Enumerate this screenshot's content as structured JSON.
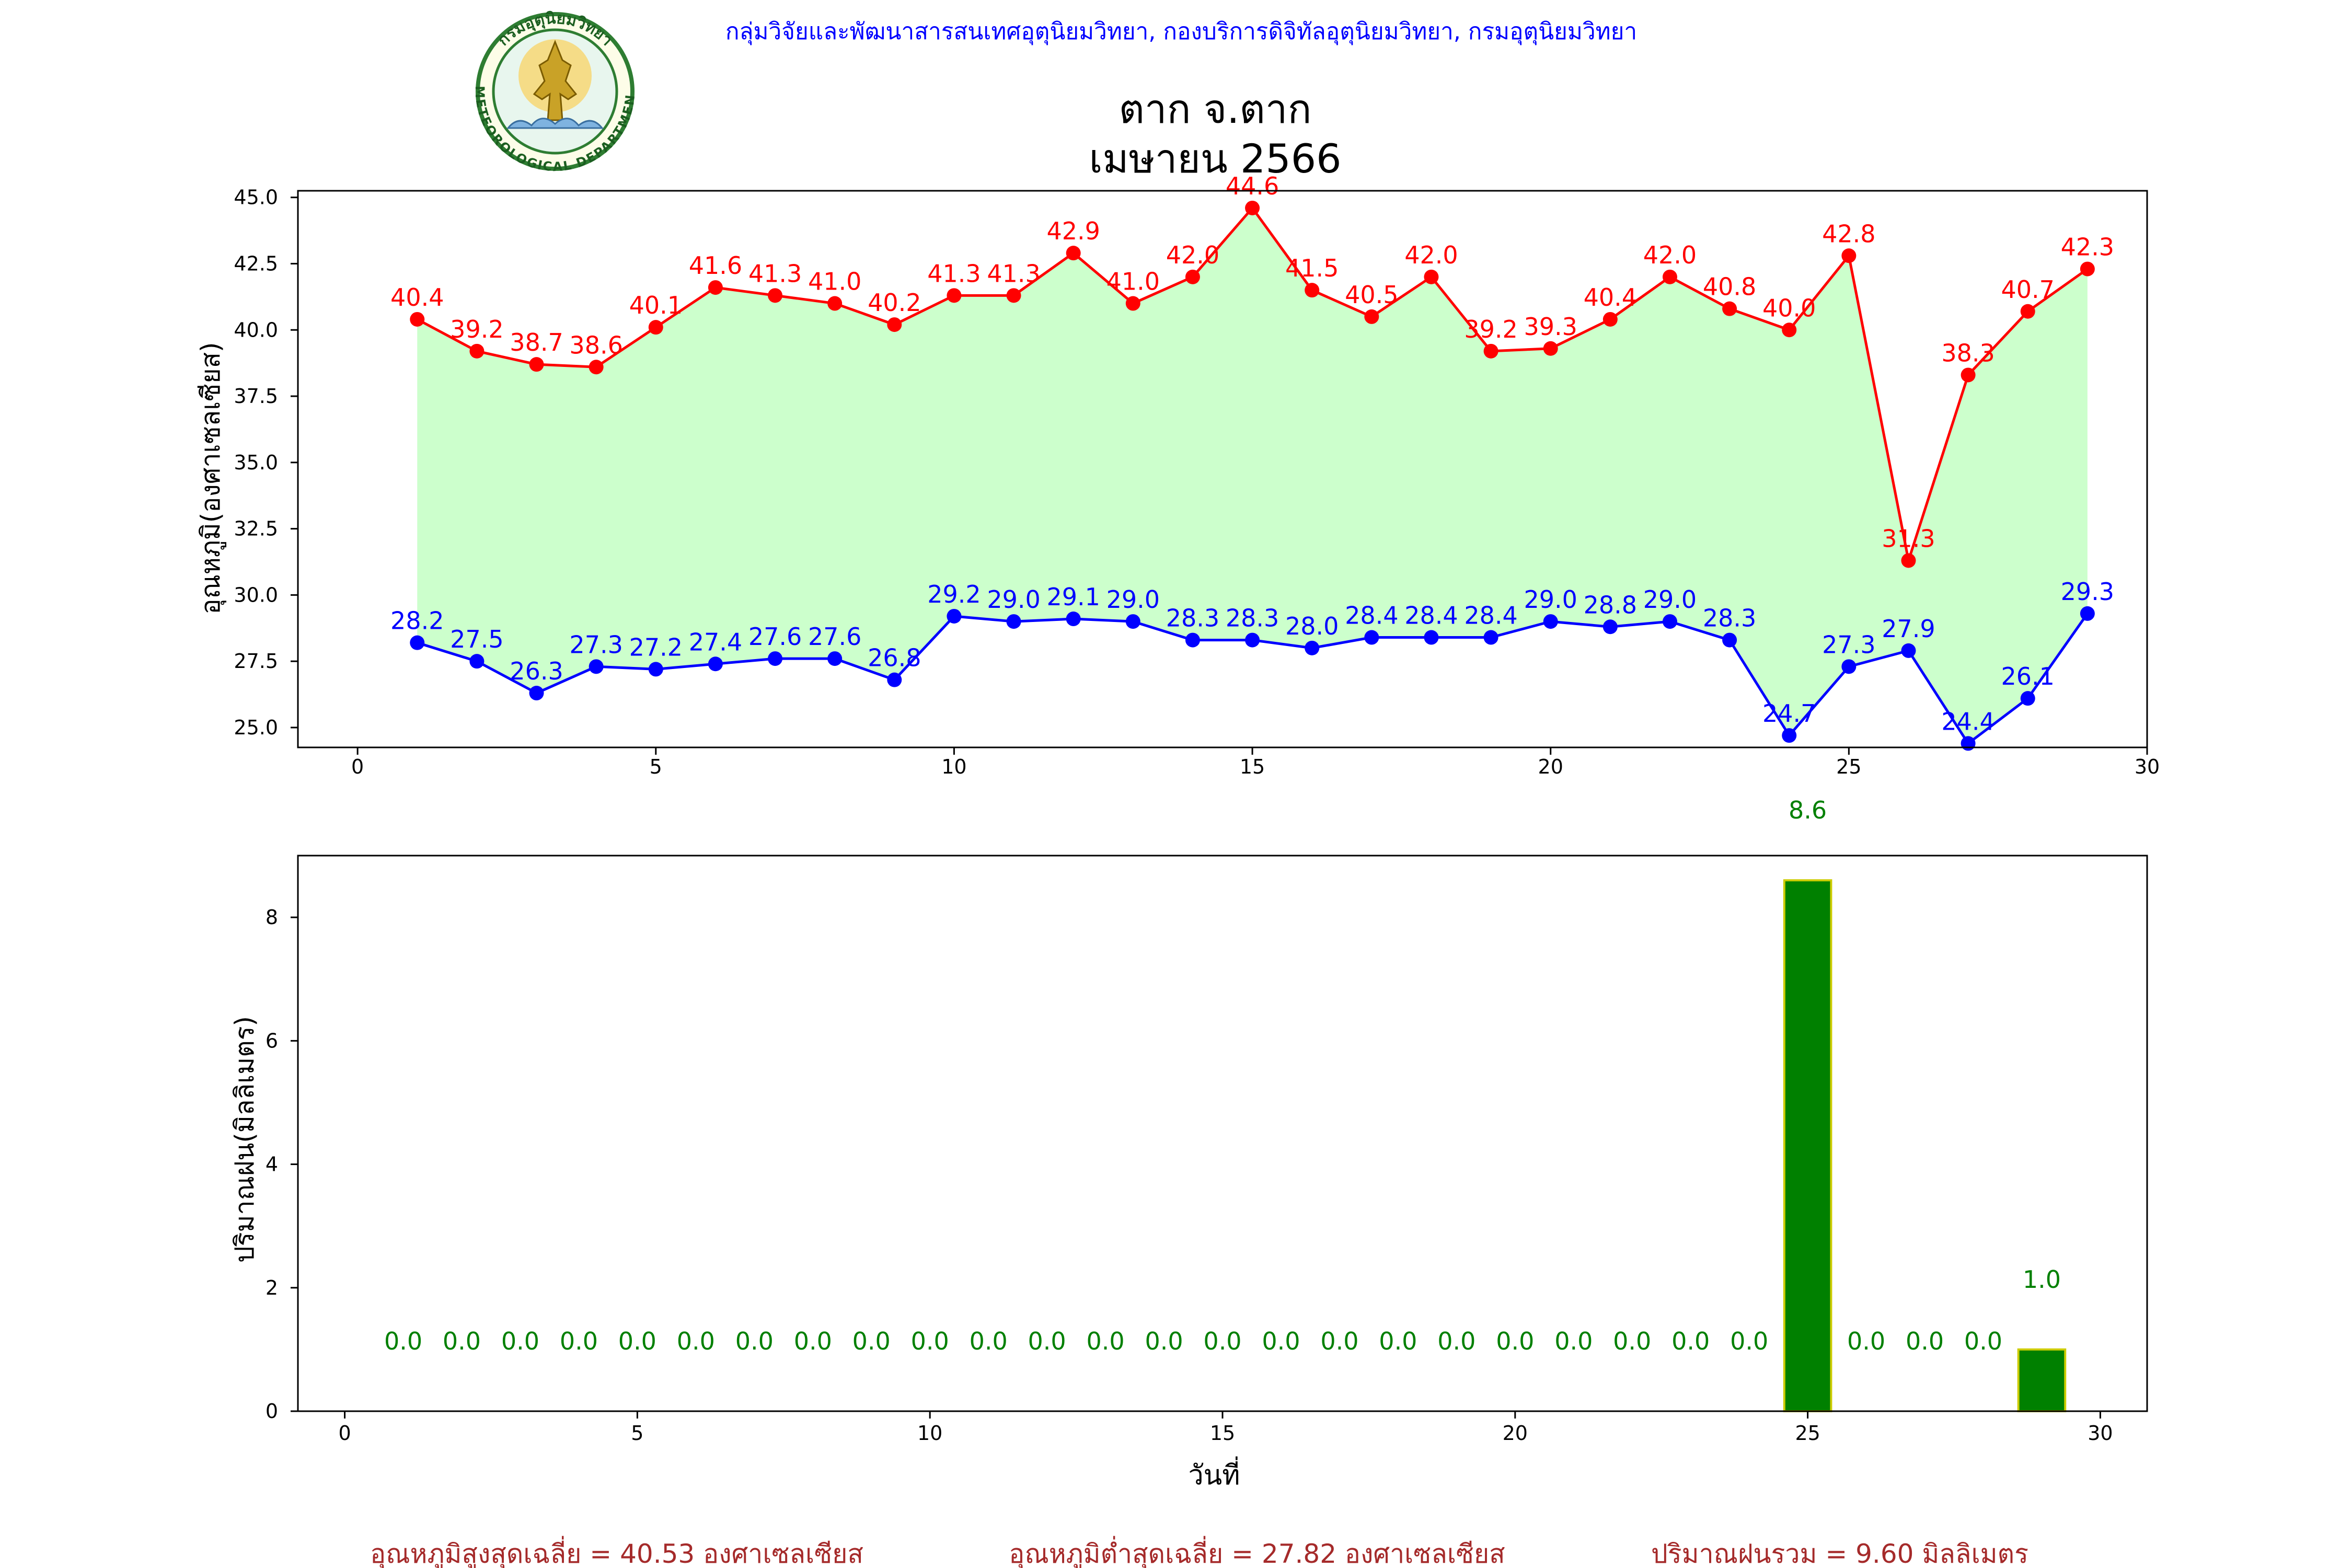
{
  "header": {
    "department_line": "กลุ่มวิจัยและพัฒนาสารสนเทศอุตุนิยมวิทยา, กองบริการดิจิทัลอุตุนิยมวิทยา, กรมอุตุนิยมวิทยา",
    "title_line1": "ตาก จ.ตาก",
    "title_line2": "เมษายน 2566",
    "logo": {
      "icon": "meteorological-department-seal-icon",
      "seal_text_top": "กรมอุตุนิยมวิทยา",
      "seal_text_bottom": "METEOROLOGICAL DEPARTMENT"
    }
  },
  "footer": {
    "avg_max": "อุณหภูมิสูงสุดเฉลี่ย = 40.53 องศาเซลเซียส",
    "avg_min": "อุณหภูมิต่ำสุดเฉลี่ย = 27.82 องศาเซลเซียส",
    "total_rain": "ปริมาณฝนรวม = 9.60 มิลลิเมตร"
  },
  "colors": {
    "max_line": "#ff0000",
    "min_line": "#0000ff",
    "fill": "#ccffcc",
    "bar": "#008000",
    "bar_edge": "#cccc00",
    "rain_label": "#008000",
    "header_text": "#0000ff",
    "footer_text": "#a52a2a"
  },
  "chart_data": [
    {
      "type": "line",
      "ylabel": "อุณหภูมิ(องศาเซลเซียส)",
      "xlim": [
        -1,
        30
      ],
      "ylim": [
        24.25,
        45.25
      ],
      "xticks": [
        0,
        5,
        10,
        15,
        20,
        25,
        30
      ],
      "yticks": [
        "25.0",
        "27.5",
        "30.0",
        "32.5",
        "35.0",
        "37.5",
        "40.0",
        "42.5",
        "45.0"
      ],
      "ytick_values": [
        25.0,
        27.5,
        30.0,
        32.5,
        35.0,
        37.5,
        40.0,
        42.5,
        45.0
      ],
      "x": [
        1,
        2,
        3,
        4,
        5,
        6,
        7,
        8,
        9,
        10,
        11,
        12,
        13,
        14,
        15,
        16,
        17,
        18,
        19,
        20,
        21,
        22,
        23,
        24,
        25,
        26,
        27,
        28,
        29
      ],
      "series": [
        {
          "key": "max",
          "values": [
            40.4,
            39.2,
            38.7,
            38.6,
            40.1,
            41.6,
            41.3,
            41.0,
            40.2,
            41.3,
            41.3,
            42.9,
            41.0,
            42.0,
            44.6,
            41.5,
            40.5,
            42.0,
            39.2,
            39.3,
            40.4,
            42.0,
            40.8,
            40.0,
            42.8,
            31.3,
            38.3,
            40.7,
            42.3
          ],
          "labels": [
            "40.4",
            "39.2",
            "38.7",
            "38.6",
            "40.1",
            "41.6",
            "41.3",
            "41.0",
            "40.2",
            "41.3",
            "41.3",
            "42.9",
            "41.0",
            "42.0",
            "44.6",
            "41.5",
            "40.5",
            "42.0",
            "39.2",
            "39.3",
            "40.4",
            "42.0",
            "40.8",
            "40.0",
            "42.8",
            "31.3",
            "38.3",
            "40.7",
            "42.3"
          ]
        },
        {
          "key": "min",
          "values": [
            28.2,
            27.5,
            26.3,
            27.3,
            27.2,
            27.4,
            27.6,
            27.6,
            26.8,
            29.2,
            29.0,
            29.1,
            29.0,
            28.3,
            28.3,
            28.0,
            28.4,
            28.4,
            28.4,
            29.0,
            28.8,
            29.0,
            28.3,
            24.7,
            27.3,
            27.9,
            24.4,
            26.1,
            29.3
          ],
          "labels": [
            "28.2",
            "27.5",
            "26.3",
            "27.3",
            "27.2",
            "27.4",
            "27.6",
            "27.6",
            "26.8",
            "29.2",
            "29.0",
            "29.1",
            "29.0",
            "28.3",
            "28.3",
            "28.0",
            "28.4",
            "28.4",
            "28.4",
            "29.0",
            "28.8",
            "29.0",
            "28.3",
            "24.7",
            "27.3",
            "27.9",
            "24.4",
            "26.1",
            "29.3"
          ]
        }
      ],
      "grid": false
    },
    {
      "type": "bar",
      "ylabel": "ปริมาณฝน(มิลลิเมตร)",
      "xlabel": "วันที่",
      "xlim": [
        -0.8,
        30.8
      ],
      "ylim": [
        0,
        9.0
      ],
      "xticks": [
        0,
        5,
        10,
        15,
        20,
        25,
        30
      ],
      "yticks": [
        "0",
        "2",
        "4",
        "6",
        "8"
      ],
      "ytick_values": [
        0,
        2,
        4,
        6,
        8
      ],
      "x": [
        1,
        2,
        3,
        4,
        5,
        6,
        7,
        8,
        9,
        10,
        11,
        12,
        13,
        14,
        15,
        16,
        17,
        18,
        19,
        20,
        21,
        22,
        23,
        24,
        25,
        26,
        27,
        28,
        29
      ],
      "values": [
        0,
        0,
        0,
        0,
        0,
        0,
        0,
        0,
        0,
        0,
        0,
        0,
        0,
        0,
        0,
        0,
        0,
        0,
        0,
        0,
        0,
        0,
        0,
        0,
        8.6,
        0,
        0,
        0,
        1.0
      ],
      "labels": [
        "0.0",
        "0.0",
        "0.0",
        "0.0",
        "0.0",
        "0.0",
        "0.0",
        "0.0",
        "0.0",
        "0.0",
        "0.0",
        "0.0",
        "0.0",
        "0.0",
        "0.0",
        "0.0",
        "0.0",
        "0.0",
        "0.0",
        "0.0",
        "0.0",
        "0.0",
        "0.0",
        "0.0",
        "8.6",
        "0.0",
        "0.0",
        "0.0",
        "1.0"
      ],
      "grid": false
    }
  ]
}
